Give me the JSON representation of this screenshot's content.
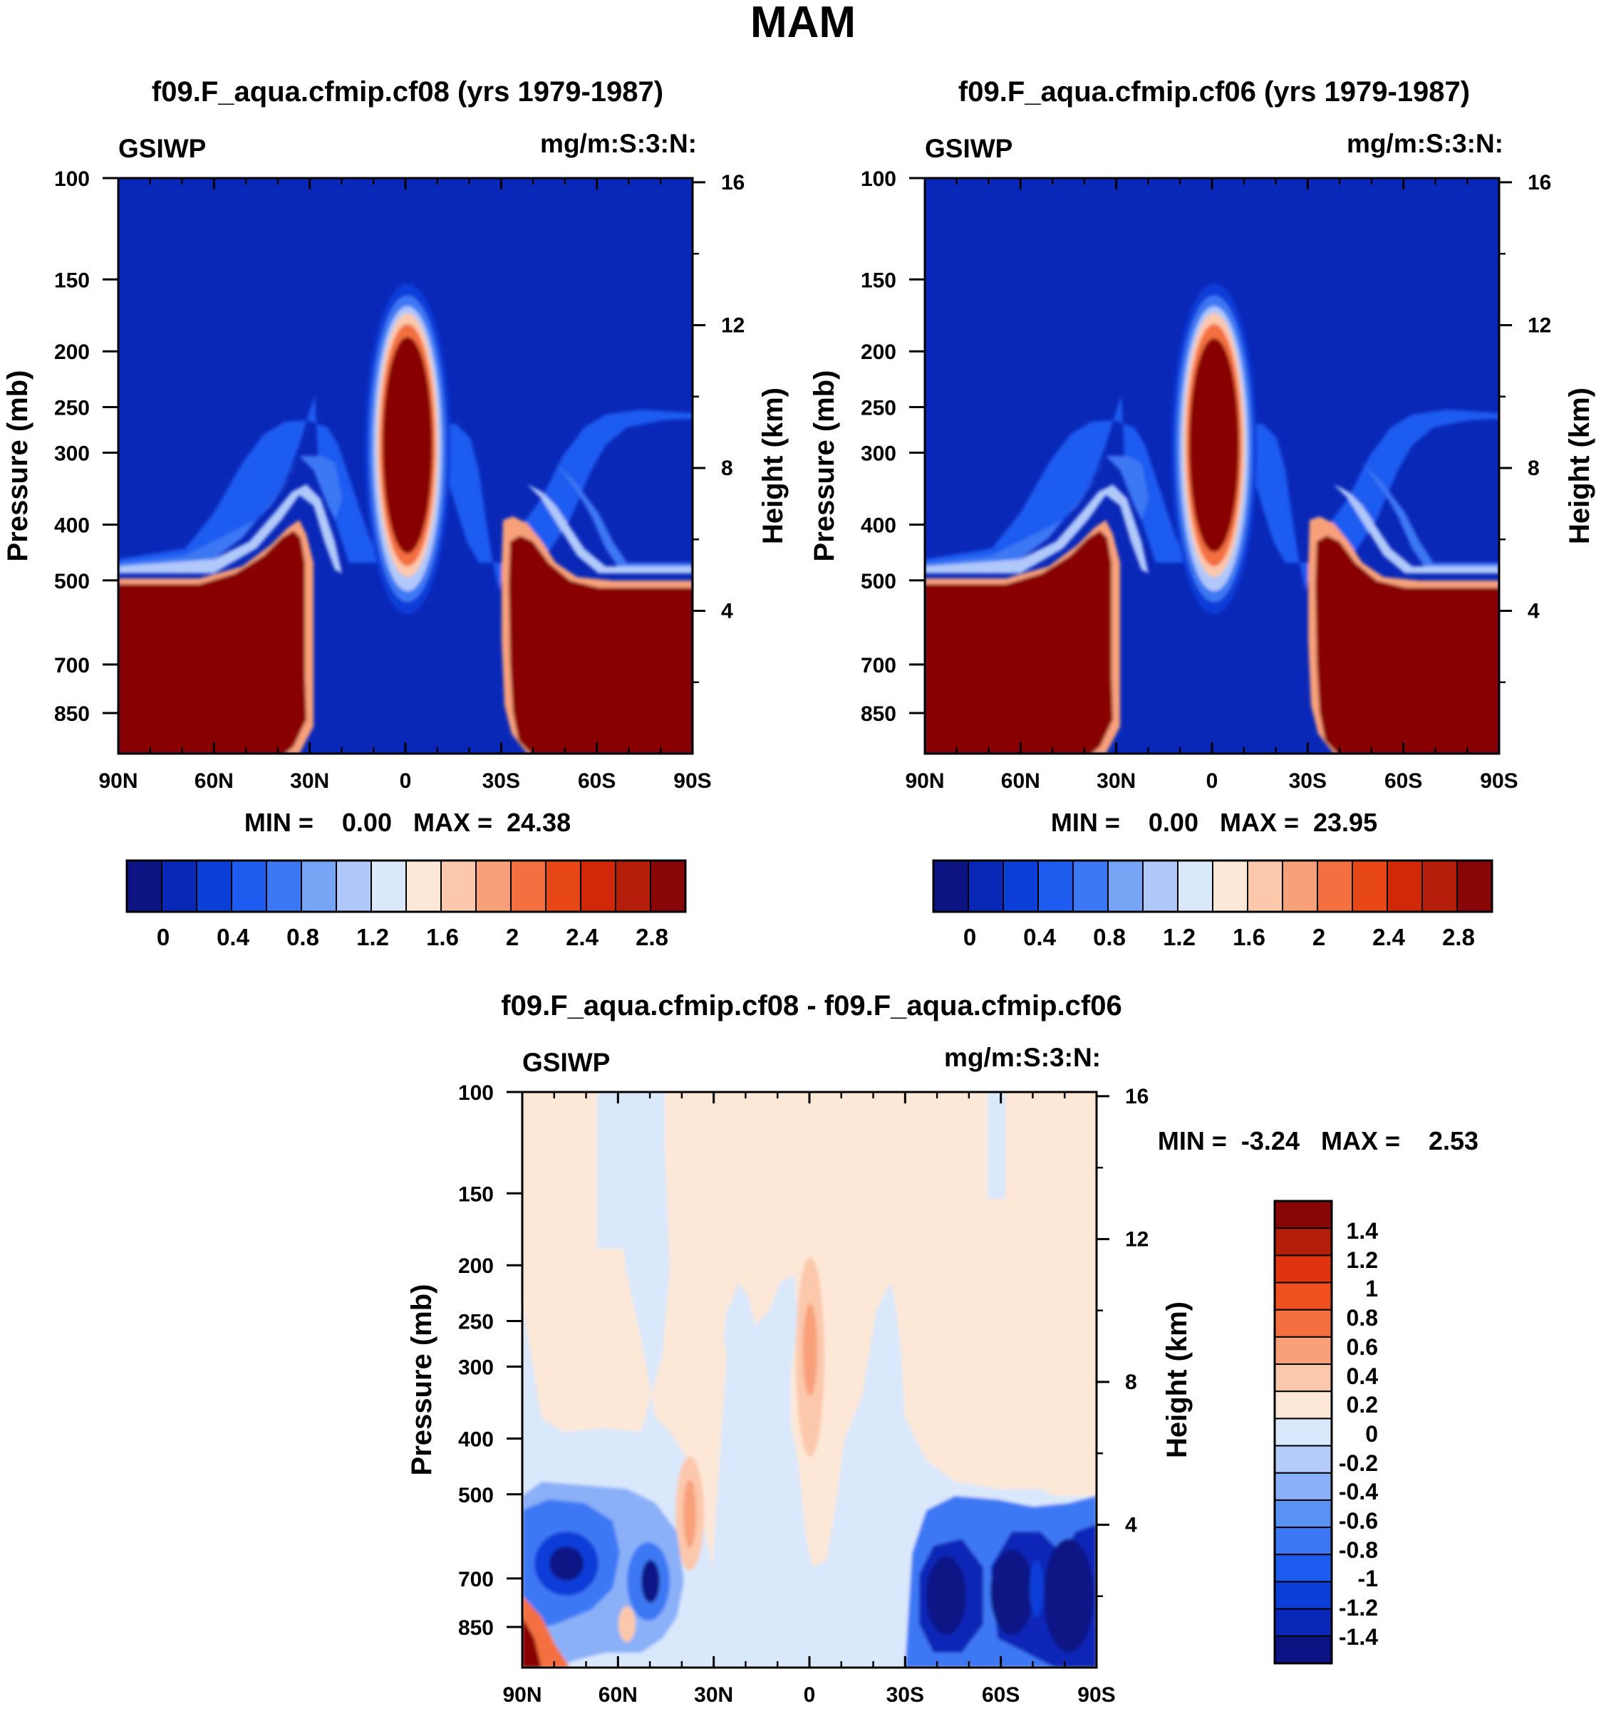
{
  "page": {
    "title": "MAM"
  },
  "colors": {
    "seq": [
      "#0c1484",
      "#0a28b8",
      "#0c3ed8",
      "#1e5cf0",
      "#3c78f4",
      "#78a4f6",
      "#b0c8fa",
      "#dae8fc",
      "#fde8d8",
      "#fcc8ac",
      "#f8a07a",
      "#f47040",
      "#e84818",
      "#d02808",
      "#b41e0a",
      "#880606"
    ],
    "diff": [
      "#0c1484",
      "#0a28b8",
      "#0c3ed8",
      "#1e5cf0",
      "#3c78f4",
      "#5a92f4",
      "#8ab0f8",
      "#b4ccfa",
      "#dae8fc",
      "#fde8d8",
      "#fcc8ac",
      "#f8a07a",
      "#f47040",
      "#f05020",
      "#e03410",
      "#b41e0a",
      "#880606"
    ]
  },
  "chart_data": [
    {
      "type": "heatmap",
      "title": "f09.F_aqua.cfmip.cf08 (yrs 1979-1987)",
      "left_label": "GSIWP",
      "right_label": "mg/m:S:3:N:",
      "ylabel": "Pressure (mb)",
      "ylabel_right": "Height (km)",
      "x_ticks": [
        "90N",
        "60N",
        "30N",
        "0",
        "30S",
        "60S",
        "90S"
      ],
      "y_ticks": [
        "100",
        "150",
        "200",
        "250",
        "300",
        "400",
        "500",
        "700",
        "850"
      ],
      "y_ticks_right": [
        "16",
        "12",
        "8",
        "4"
      ],
      "xlim": [
        90,
        -90
      ],
      "ylim_mb": [
        100,
        1000
      ],
      "min_max": "MIN =    0.00   MAX =  24.38",
      "min": 0.0,
      "max": 24.38,
      "colorbar_labels": [
        "0",
        "0.4",
        "0.8",
        "1.2",
        "1.6",
        "2",
        "2.4",
        "2.8"
      ],
      "levels": [
        0,
        0.2,
        0.4,
        0.6,
        0.8,
        1.0,
        1.2,
        1.4,
        1.6,
        1.8,
        2.0,
        2.2,
        2.4,
        2.6,
        2.8
      ]
    },
    {
      "type": "heatmap",
      "title": "f09.F_aqua.cfmip.cf06 (yrs 1979-1987)",
      "left_label": "GSIWP",
      "right_label": "mg/m:S:3:N:",
      "ylabel": "Pressure (mb)",
      "ylabel_right": "Height (km)",
      "x_ticks": [
        "90N",
        "60N",
        "30N",
        "0",
        "30S",
        "60S",
        "90S"
      ],
      "y_ticks": [
        "100",
        "150",
        "200",
        "250",
        "300",
        "400",
        "500",
        "700",
        "850"
      ],
      "y_ticks_right": [
        "16",
        "12",
        "8",
        "4"
      ],
      "xlim": [
        90,
        -90
      ],
      "ylim_mb": [
        100,
        1000
      ],
      "min_max": "MIN =    0.00   MAX =  23.95",
      "min": 0.0,
      "max": 23.95,
      "colorbar_labels": [
        "0",
        "0.4",
        "0.8",
        "1.2",
        "1.6",
        "2",
        "2.4",
        "2.8"
      ],
      "levels": [
        0,
        0.2,
        0.4,
        0.6,
        0.8,
        1.0,
        1.2,
        1.4,
        1.6,
        1.8,
        2.0,
        2.2,
        2.4,
        2.6,
        2.8
      ]
    },
    {
      "type": "heatmap",
      "title": "f09.F_aqua.cfmip.cf08 - f09.F_aqua.cfmip.cf06",
      "left_label": "GSIWP",
      "right_label": "mg/m:S:3:N:",
      "ylabel": "Pressure (mb)",
      "ylabel_right": "Height (km)",
      "x_ticks": [
        "90N",
        "60N",
        "30N",
        "0",
        "30S",
        "60S",
        "90S"
      ],
      "y_ticks": [
        "100",
        "150",
        "200",
        "250",
        "300",
        "400",
        "500",
        "700",
        "850"
      ],
      "y_ticks_right": [
        "16",
        "12",
        "8",
        "4"
      ],
      "xlim": [
        90,
        -90
      ],
      "ylim_mb": [
        100,
        1000
      ],
      "min_max": "MIN =  -3.24   MAX =    2.53",
      "min": -3.24,
      "max": 2.53,
      "colorbar_labels": [
        "1.4",
        "1.2",
        "1",
        "0.8",
        "0.6",
        "0.4",
        "0.2",
        "0",
        "-0.2",
        "-0.4",
        "-0.6",
        "-0.8",
        "-1",
        "-1.2",
        "-1.4"
      ],
      "levels": [
        -1.4,
        -1.2,
        -1.0,
        -0.8,
        -0.6,
        -0.4,
        -0.2,
        0,
        0.2,
        0.4,
        0.6,
        0.8,
        1.0,
        1.2,
        1.4
      ]
    }
  ]
}
